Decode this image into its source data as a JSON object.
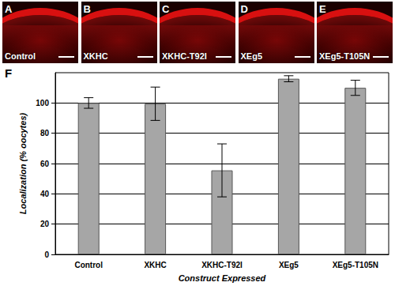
{
  "panels": [
    {
      "letter": "A",
      "label": "Control"
    },
    {
      "letter": "B",
      "label": "XKHC"
    },
    {
      "letter": "C",
      "label": "XKHC-T92I"
    },
    {
      "letter": "D",
      "label": "XEg5"
    },
    {
      "letter": "E",
      "label": "XEg5-T105N"
    }
  ],
  "panel_label": "F",
  "chart_data": {
    "type": "bar",
    "x_label": "Construct Expressed",
    "y_label": "Localization (% oocytes)",
    "categories": [
      "Control",
      "XKHC",
      "XKHC-T92I",
      "XEg5",
      "XEg5-T105N"
    ],
    "values": [
      100,
      99.5,
      55.5,
      116,
      110
    ],
    "errors": [
      3.5,
      11,
      17.5,
      2,
      5
    ],
    "color": "#a6a6a6",
    "ylim": [
      0,
      120
    ],
    "yticks": [
      0,
      20,
      40,
      60,
      80,
      100
    ],
    "grid": true
  }
}
